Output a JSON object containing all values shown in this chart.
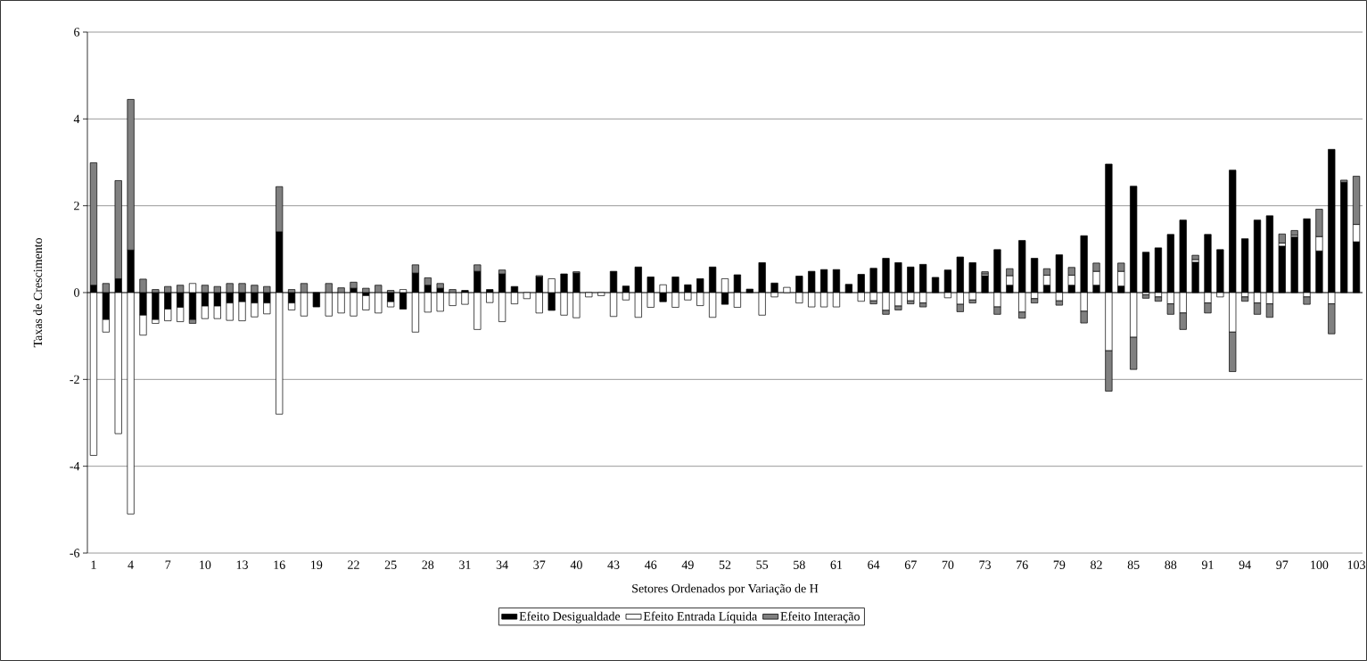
{
  "chart_data": {
    "type": "bar",
    "stacked": true,
    "xlabel": "Setores Ordenados por Variação de H",
    "ylabel": "Taxas de Crescimento",
    "categories": [
      "1",
      null,
      null,
      "4",
      null,
      null,
      "7",
      null,
      null,
      "10",
      null,
      null,
      "13",
      null,
      null,
      "16",
      null,
      null,
      "19",
      null,
      null,
      "22",
      null,
      null,
      "25",
      null,
      null,
      "28",
      null,
      null,
      "31",
      null,
      null,
      "34",
      null,
      null,
      "37",
      null,
      null,
      "40",
      null,
      null,
      "43",
      null,
      null,
      "46",
      null,
      null,
      "49",
      null,
      null,
      "52",
      null,
      null,
      "55",
      null,
      null,
      "58",
      null,
      null,
      "61",
      null,
      null,
      "64",
      null,
      null,
      "67",
      null,
      null,
      "70",
      null,
      null,
      "73",
      null,
      null,
      "76",
      null,
      null,
      "79",
      null,
      null,
      "82",
      null,
      null,
      "85",
      null,
      null,
      "88",
      null,
      null,
      "91",
      null,
      null,
      "94",
      null,
      null,
      "97",
      null,
      null,
      "100",
      null,
      null,
      "103"
    ],
    "series": [
      {
        "name": "Efeito Desigualdade",
        "color": "#000000",
        "values": [
          0.17,
          -0.62,
          0.32,
          0.98,
          -0.52,
          -0.62,
          -0.38,
          -0.34,
          -0.62,
          -0.31,
          -0.31,
          -0.24,
          -0.21,
          -0.24,
          -0.24,
          1.4,
          -0.24,
          null,
          -0.33,
          null,
          null,
          0.1,
          -0.07,
          null,
          -0.21,
          -0.38,
          0.45,
          0.17,
          0.1,
          null,
          0.05,
          0.49,
          0.07,
          0.43,
          0.14,
          null,
          0.36,
          -0.41,
          0.43,
          0.45,
          null,
          null,
          0.49,
          0.15,
          0.59,
          0.36,
          -0.21,
          0.36,
          0.18,
          0.32,
          0.59,
          -0.27,
          0.41,
          0.08,
          0.69,
          0.22,
          null,
          0.38,
          0.49,
          0.53,
          0.53,
          0.19,
          0.42,
          0.56,
          0.79,
          0.69,
          0.59,
          0.65,
          0.35,
          0.52,
          0.82,
          0.69,
          0.39,
          0.99,
          0.17,
          1.2,
          0.79,
          0.17,
          0.87,
          0.17,
          1.31,
          0.17,
          2.96,
          0.15,
          2.45,
          0.93,
          1.03,
          1.34,
          1.67,
          0.7,
          1.34,
          0.99,
          2.82,
          1.24,
          1.67,
          1.77,
          1.07,
          1.28,
          1.7,
          0.96,
          3.3,
          2.54,
          1.17
        ]
      },
      {
        "name": "Efeito Entrada Líquida",
        "color": "#ffffff",
        "values": [
          -3.75,
          -0.29,
          -3.25,
          -5.1,
          -0.46,
          -0.09,
          -0.27,
          -0.33,
          0.21,
          -0.29,
          -0.29,
          -0.4,
          -0.44,
          -0.32,
          -0.25,
          -2.8,
          -0.16,
          -0.54,
          null,
          -0.54,
          -0.47,
          -0.54,
          -0.33,
          -0.47,
          -0.12,
          0.07,
          -0.91,
          -0.45,
          -0.43,
          -0.3,
          -0.27,
          -0.85,
          -0.23,
          -0.67,
          -0.26,
          -0.14,
          -0.47,
          0.32,
          -0.52,
          -0.58,
          -0.1,
          -0.07,
          -0.55,
          -0.17,
          -0.57,
          -0.34,
          0.18,
          -0.34,
          -0.17,
          -0.3,
          -0.57,
          0.32,
          -0.34,
          null,
          -0.52,
          -0.1,
          0.12,
          -0.24,
          -0.33,
          -0.33,
          -0.33,
          null,
          -0.2,
          -0.19,
          -0.41,
          -0.31,
          -0.19,
          -0.24,
          null,
          -0.12,
          -0.27,
          -0.17,
          0.04,
          -0.33,
          0.22,
          -0.45,
          -0.14,
          0.23,
          -0.19,
          0.23,
          -0.43,
          0.32,
          -1.34,
          0.34,
          -1.03,
          -0.05,
          -0.1,
          -0.26,
          -0.47,
          0.06,
          -0.24,
          -0.1,
          -0.91,
          -0.1,
          -0.24,
          -0.26,
          0.07,
          0.04,
          -0.1,
          0.33,
          -0.26,
          null,
          0.4
        ]
      },
      {
        "name": "Efeito Interação",
        "color": "#808080",
        "values": [
          2.82,
          0.21,
          2.26,
          3.47,
          0.31,
          0.07,
          0.14,
          0.17,
          -0.09,
          0.17,
          0.14,
          0.21,
          0.21,
          0.17,
          0.14,
          1.04,
          0.07,
          0.21,
          null,
          0.21,
          0.11,
          0.14,
          0.1,
          0.17,
          0.05,
          null,
          0.19,
          0.17,
          0.11,
          0.07,
          null,
          0.15,
          null,
          0.09,
          null,
          null,
          0.03,
          null,
          null,
          0.03,
          null,
          null,
          null,
          null,
          null,
          null,
          null,
          null,
          null,
          null,
          null,
          null,
          null,
          null,
          null,
          null,
          null,
          null,
          null,
          null,
          null,
          null,
          null,
          -0.07,
          -0.09,
          -0.09,
          -0.07,
          -0.09,
          null,
          null,
          -0.17,
          -0.07,
          0.05,
          -0.17,
          0.16,
          -0.14,
          -0.1,
          0.15,
          -0.1,
          0.18,
          -0.27,
          0.19,
          -0.93,
          0.19,
          -0.74,
          -0.08,
          -0.1,
          -0.24,
          -0.38,
          0.1,
          -0.23,
          null,
          -0.91,
          -0.1,
          -0.26,
          -0.31,
          0.21,
          0.11,
          -0.17,
          0.63,
          -0.69,
          0.05,
          1.11
        ]
      }
    ],
    "ylim": [
      -6,
      6
    ],
    "yticks": [
      -6,
      -4,
      -2,
      0,
      2,
      4,
      6
    ],
    "grid": "y",
    "legend": "bottom"
  }
}
